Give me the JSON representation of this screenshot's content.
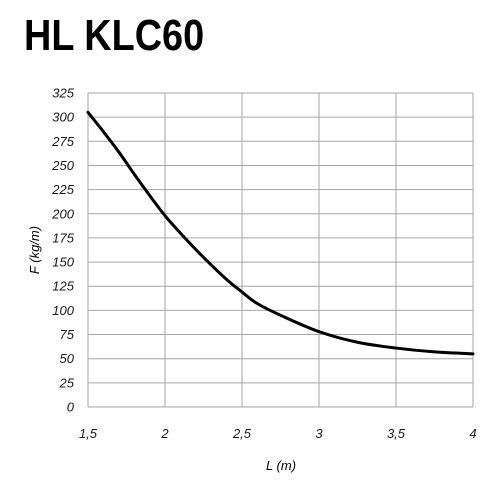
{
  "title": "HL KLC60",
  "chart_data": {
    "type": "line",
    "xlabel": "L (m)",
    "ylabel": "F (kg/m)",
    "xlim": [
      1.5,
      4
    ],
    "ylim": [
      0,
      325
    ],
    "x_ticks": [
      1.5,
      2,
      2.5,
      3,
      3.5,
      4
    ],
    "x_tick_labels": [
      "1,5",
      "2",
      "2,5",
      "3",
      "3,5",
      "4"
    ],
    "y_ticks": [
      0,
      25,
      50,
      75,
      100,
      125,
      150,
      175,
      200,
      225,
      250,
      275,
      300,
      325
    ],
    "y_tick_labels": [
      "0",
      "25",
      "50",
      "75",
      "100",
      "125",
      "150",
      "175",
      "200",
      "225",
      "250",
      "275",
      "300",
      "325"
    ],
    "grid": true,
    "series": [
      {
        "x": [
          1.5,
          1.6,
          1.7,
          1.8,
          1.9,
          2.0,
          2.1,
          2.2,
          2.3,
          2.4,
          2.5,
          2.6,
          2.75,
          3.0,
          3.25,
          3.5,
          3.75,
          4.0
        ],
        "y": [
          305,
          285,
          264,
          241,
          219,
          198,
          180,
          163,
          147,
          132,
          119,
          107,
          95,
          78,
          67,
          61,
          57,
          55
        ],
        "color": "#000000"
      }
    ]
  }
}
